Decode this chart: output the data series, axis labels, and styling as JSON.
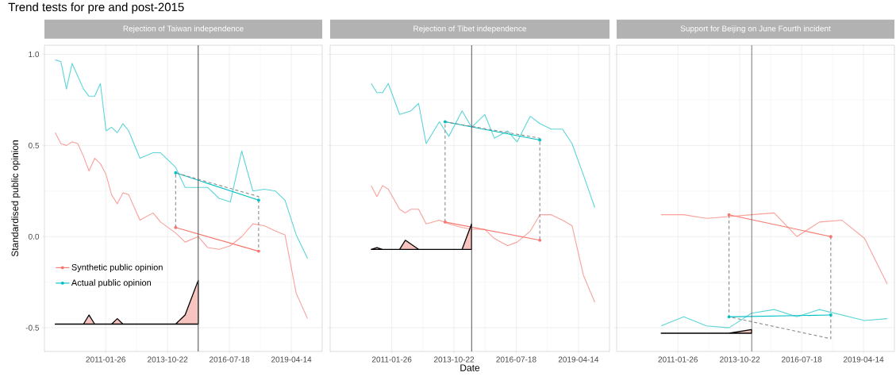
{
  "chart_data": [
    {
      "type": "line",
      "title": "Rejection of Taiwan independence",
      "ylabel": "Standardised public opinion",
      "annotations": [
        "Trend tests for pre and post-2015"
      ],
      "xlim": [
        "2008-05-11",
        "2020-08-25"
      ],
      "xticks": [
        "2011-01-26",
        "2013-10-22",
        "2016-07-18",
        "2019-04-14"
      ],
      "ylim": [
        -0.63,
        1.05
      ],
      "yticks": [
        -0.5,
        {
          "value": 0,
          "label": "0.0"
        },
        0.5,
        {
          "value": 1,
          "label": "1.0"
        }
      ],
      "grid": true,
      "legend": "bottom left",
      "ref_lines": [
        {
          "axis": "x",
          "value": "2015-03",
          "color": "#4d4d4d"
        }
      ],
      "series": [
        {
          "color": "#f9a19a",
          "x": [
            "2008-11",
            "2009-02",
            "2009-05",
            "2009-08",
            "2009-11",
            "2010-02",
            "2010-05",
            "2010-08",
            "2010-11",
            "2011-02",
            "2011-05",
            "2011-08",
            "2011-11",
            "2012-02",
            "2012-08",
            "2013-03",
            "2013-07",
            "2014-03",
            "2014-08",
            "2015-03",
            "2015-08",
            "2016-02",
            "2016-08",
            "2017-02",
            "2017-08",
            "2018-02",
            "2018-08",
            "2019-01",
            "2019-07",
            "2020-01"
          ],
          "values": [
            0.57,
            0.51,
            0.5,
            0.52,
            0.51,
            0.44,
            0.36,
            0.43,
            0.4,
            0.34,
            0.23,
            0.18,
            0.24,
            0.23,
            0.09,
            0.13,
            0.08,
            0.02,
            -0.03,
            0.0,
            -0.06,
            -0.07,
            -0.05,
            0.0,
            0.07,
            0.06,
            0.03,
            0.01,
            -0.31,
            -0.45
          ]
        },
        {
          "color": "#5cd5d8",
          "x": [
            "2008-11",
            "2009-02",
            "2009-05",
            "2009-08",
            "2009-11",
            "2010-02",
            "2010-05",
            "2010-08",
            "2010-11",
            "2011-02",
            "2011-05",
            "2011-08",
            "2011-11",
            "2012-02",
            "2012-08",
            "2013-03",
            "2013-07",
            "2014-03",
            "2014-08",
            "2015-03",
            "2015-08",
            "2016-02",
            "2016-08",
            "2017-02",
            "2017-08",
            "2018-02",
            "2018-08",
            "2019-01",
            "2019-07",
            "2020-01"
          ],
          "values": [
            0.97,
            0.96,
            0.81,
            0.95,
            0.88,
            0.81,
            0.77,
            0.77,
            0.84,
            0.58,
            0.6,
            0.57,
            0.62,
            0.58,
            0.43,
            0.46,
            0.46,
            0.38,
            0.27,
            0.27,
            0.27,
            0.21,
            0.19,
            0.47,
            0.25,
            0.26,
            0.25,
            0.2,
            0.01,
            -0.12
          ]
        },
        {
          "name": "Synthetic public opinion",
          "color": "#f8766d",
          "marker": "circle",
          "x": [
            "2014-03",
            "2017-11"
          ],
          "values": [
            0.05,
            -0.08
          ]
        },
        {
          "name": "Actual public opinion",
          "color": "#00bfc4",
          "marker": "circle",
          "x": [
            "2014-03",
            "2017-11"
          ],
          "values": [
            0.35,
            0.2
          ]
        },
        {
          "color": "#8c8c8c",
          "line_style": "dashed",
          "x": [
            "2014-03",
            "2014-03",
            "2017-11",
            "2017-11"
          ],
          "values": [
            0.05,
            0.35,
            0.22,
            -0.08
          ]
        },
        {
          "type": "area",
          "color": "#f7c4bf",
          "x": [
            "2008-11",
            "2010-02",
            "2010-05",
            "2010-08",
            "2011-05",
            "2011-08",
            "2011-11",
            "2014-03",
            "2014-08",
            "2015-03",
            "2015-03"
          ],
          "values": [
            -0.48,
            -0.48,
            -0.43,
            -0.48,
            -0.48,
            -0.45,
            -0.48,
            -0.48,
            -0.43,
            -0.24,
            -0.48
          ]
        }
      ]
    },
    {
      "type": "line",
      "title": "Rejection of Tibet independence",
      "xlabel": "Date",
      "tick_labels": "x",
      "xlim": [
        "2008-05-11",
        "2020-08-25"
      ],
      "xticks": [
        "2011-01-26",
        "2013-10-22",
        "2016-07-18",
        "2019-04-14"
      ],
      "ylim": [
        -0.63,
        1.05
      ],
      "yticks": [
        -0.5,
        0,
        0.5,
        1
      ],
      "grid": true,
      "ref_lines": [
        {
          "axis": "x",
          "value": "2014-08",
          "color": "#4d4d4d"
        }
      ],
      "series": [
        {
          "color": "#f9a19a",
          "x": [
            "2010-03",
            "2010-06",
            "2010-09",
            "2010-12",
            "2011-06",
            "2011-09",
            "2011-12",
            "2012-04",
            "2012-08",
            "2013-03",
            "2013-08",
            "2014-03",
            "2014-08",
            "2015-03",
            "2015-08",
            "2016-03",
            "2016-08",
            "2017-03",
            "2017-08",
            "2018-02",
            "2018-08",
            "2019-01",
            "2019-07",
            "2020-01"
          ],
          "values": [
            0.28,
            0.22,
            0.28,
            0.26,
            0.15,
            0.13,
            0.15,
            0.15,
            0.07,
            0.09,
            0.07,
            0.05,
            0.04,
            0.04,
            -0.01,
            -0.05,
            -0.03,
            0.03,
            0.12,
            0.12,
            0.09,
            0.06,
            -0.21,
            -0.36
          ]
        },
        {
          "color": "#5cd5d8",
          "x": [
            "2010-03",
            "2010-06",
            "2010-09",
            "2010-12",
            "2011-06",
            "2011-09",
            "2011-12",
            "2012-04",
            "2012-08",
            "2013-03",
            "2013-08",
            "2014-03",
            "2014-08",
            "2015-03",
            "2015-08",
            "2016-03",
            "2016-08",
            "2017-03",
            "2017-08",
            "2018-02",
            "2018-08",
            "2019-01",
            "2019-07",
            "2020-01"
          ],
          "values": [
            0.84,
            0.79,
            0.79,
            0.84,
            0.67,
            0.68,
            0.69,
            0.73,
            0.51,
            0.63,
            0.55,
            0.69,
            0.6,
            0.67,
            0.54,
            0.58,
            0.52,
            0.66,
            0.62,
            0.59,
            0.59,
            0.51,
            0.34,
            0.16
          ]
        },
        {
          "color": "#f8766d",
          "marker": "circle",
          "x": [
            "2013-06",
            "2017-08"
          ],
          "values": [
            0.08,
            -0.02
          ]
        },
        {
          "color": "#00bfc4",
          "marker": "circle",
          "x": [
            "2013-06",
            "2017-08"
          ],
          "values": [
            0.63,
            0.53
          ]
        },
        {
          "color": "#8c8c8c",
          "line_style": "dashed",
          "x": [
            "2013-06",
            "2013-06",
            "2017-08",
            "2017-08"
          ],
          "values": [
            0.08,
            0.63,
            0.54,
            -0.02
          ]
        },
        {
          "type": "area",
          "color": "#f7c4bf",
          "x": [
            "2010-03",
            "2010-06",
            "2010-09",
            "2011-06",
            "2011-09",
            "2012-04",
            "2014-03",
            "2014-08",
            "2014-08"
          ],
          "values": [
            -0.07,
            -0.06,
            -0.07,
            -0.07,
            -0.02,
            -0.07,
            -0.07,
            0.07,
            -0.07
          ]
        }
      ]
    },
    {
      "type": "line",
      "title": "Support for Beijing on June Fourth incident",
      "tick_labels": "x",
      "xlim": [
        "2008-05-11",
        "2020-08-25"
      ],
      "xticks": [
        "2011-01-26",
        "2013-10-22",
        "2016-07-18",
        "2019-04-14"
      ],
      "ylim": [
        -0.63,
        1.05
      ],
      "yticks": [
        -0.5,
        0,
        0.5,
        1
      ],
      "grid": true,
      "ref_lines": [
        {
          "axis": "x",
          "value": "2014-05",
          "color": "#4d4d4d"
        }
      ],
      "series": [
        {
          "color": "#f9a19a",
          "x": [
            "2010-05",
            "2011-05",
            "2012-05",
            "2013-05",
            "2014-05",
            "2015-05",
            "2016-05",
            "2017-05",
            "2018-05",
            "2019-05",
            "2020-05"
          ],
          "values": [
            0.12,
            0.12,
            0.1,
            0.11,
            0.12,
            0.13,
            0.0,
            0.08,
            0.09,
            -0.01,
            -0.26
          ]
        },
        {
          "color": "#5cd5d8",
          "x": [
            "2010-05",
            "2011-05",
            "2012-05",
            "2013-05",
            "2014-05",
            "2015-05",
            "2016-05",
            "2017-05",
            "2018-05",
            "2019-05",
            "2020-05"
          ],
          "values": [
            -0.49,
            -0.44,
            -0.49,
            -0.5,
            -0.42,
            -0.4,
            -0.44,
            -0.4,
            -0.43,
            -0.46,
            -0.45
          ]
        },
        {
          "color": "#f8766d",
          "marker": "circle",
          "x": [
            "2013-05",
            "2017-11"
          ],
          "values": [
            0.12,
            0.0
          ]
        },
        {
          "color": "#00bfc4",
          "marker": "circle",
          "x": [
            "2013-05",
            "2017-11"
          ],
          "values": [
            -0.44,
            -0.43
          ]
        },
        {
          "color": "#8c8c8c",
          "line_style": "dashed",
          "x": [
            "2013-05",
            "2013-05",
            "2017-11",
            "2017-11"
          ],
          "values": [
            0.12,
            -0.44,
            -0.56,
            0.0
          ]
        },
        {
          "type": "area",
          "color": "#f7c4bf",
          "x": [
            "2010-05",
            "2013-05",
            "2014-05",
            "2014-05"
          ],
          "values": [
            -0.53,
            -0.53,
            -0.51,
            -0.53
          ]
        }
      ]
    }
  ]
}
